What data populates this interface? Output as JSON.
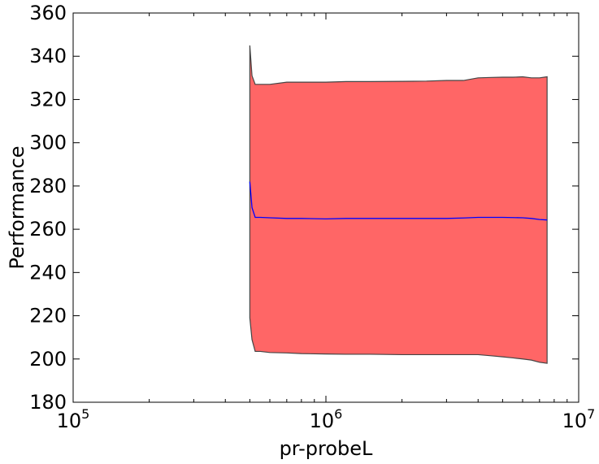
{
  "chart_data": {
    "type": "area",
    "xlabel": "pr-probeL",
    "ylabel": "Performance",
    "xscale": "log",
    "xlim": [
      100000,
      10000000
    ],
    "ylim": [
      180,
      360
    ],
    "grid": false,
    "colors": {
      "band_fill": "#ff6666",
      "band_edge": "#444444",
      "mean_line": "#0000ff"
    },
    "x_ticks": [
      {
        "value": 100000,
        "base": "10",
        "exp": "5"
      },
      {
        "value": 1000000,
        "base": "10",
        "exp": "6"
      },
      {
        "value": 10000000,
        "base": "10",
        "exp": "7"
      }
    ],
    "y_ticks": [
      180,
      200,
      220,
      240,
      260,
      280,
      300,
      320,
      340,
      360
    ],
    "x": [
      500000,
      510000,
      525000,
      550000,
      600000,
      700000,
      800000,
      1000000,
      1200000,
      1500000,
      2000000,
      2500000,
      3000000,
      3500000,
      4000000,
      4500000,
      5000000,
      5500000,
      6000000,
      6500000,
      7000000,
      7500000
    ],
    "series": [
      {
        "name": "",
        "role": "upper",
        "values": [
          345,
          331,
          327,
          327,
          327,
          328,
          328,
          328,
          328.3,
          328.3,
          328.4,
          328.5,
          328.8,
          328.8,
          330,
          330.2,
          330.3,
          330.3,
          330.5,
          330,
          330,
          330.5
        ]
      },
      {
        "name": "",
        "role": "mean",
        "values": [
          282,
          270,
          265.5,
          265.5,
          265.3,
          265,
          265,
          264.8,
          265,
          265,
          265,
          265,
          265,
          265.2,
          265.5,
          265.5,
          265.5,
          265.4,
          265.3,
          265,
          264.5,
          264.3
        ]
      },
      {
        "name": "",
        "role": "lower",
        "values": [
          219,
          209,
          203.5,
          203.5,
          203,
          202.8,
          202.5,
          202.3,
          202.2,
          202.2,
          202,
          202,
          202,
          202,
          202,
          201.5,
          201,
          200.5,
          200,
          199.5,
          198.5,
          198
        ]
      }
    ]
  }
}
